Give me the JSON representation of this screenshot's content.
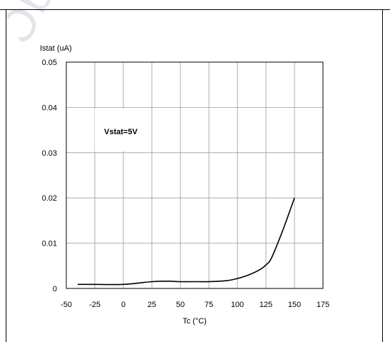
{
  "watermark": "Obsolete Product(s)",
  "chart_data": {
    "type": "line",
    "title": "",
    "xlabel": "Tc (°C)",
    "ylabel": "Istat (uA)",
    "xlim": [
      -50,
      175
    ],
    "ylim": [
      0,
      0.05
    ],
    "xticks": [
      -50,
      -25,
      0,
      25,
      50,
      75,
      100,
      125,
      150,
      175
    ],
    "yticks": [
      0,
      0.01,
      0.02,
      0.03,
      0.04,
      0.05
    ],
    "xtick_labels": [
      "-50",
      "-25",
      "0",
      "25",
      "50",
      "75",
      "100",
      "125",
      "150",
      "175"
    ],
    "ytick_labels": [
      "0",
      "0.01",
      "0.02",
      "0.03",
      "0.04",
      "0.05"
    ],
    "grid": true,
    "annotation": "Vstat=5V",
    "series": [
      {
        "name": "",
        "x": [
          -40,
          -25,
          -10,
          0,
          10,
          25,
          40,
          50,
          65,
          75,
          90,
          100,
          110,
          120,
          125,
          130,
          140,
          150
        ],
        "y": [
          0.0009,
          0.0009,
          0.00085,
          0.0009,
          0.0011,
          0.0015,
          0.0016,
          0.0015,
          0.0015,
          0.0015,
          0.0017,
          0.0022,
          0.003,
          0.0042,
          0.0052,
          0.0068,
          0.013,
          0.02
        ]
      }
    ]
  }
}
